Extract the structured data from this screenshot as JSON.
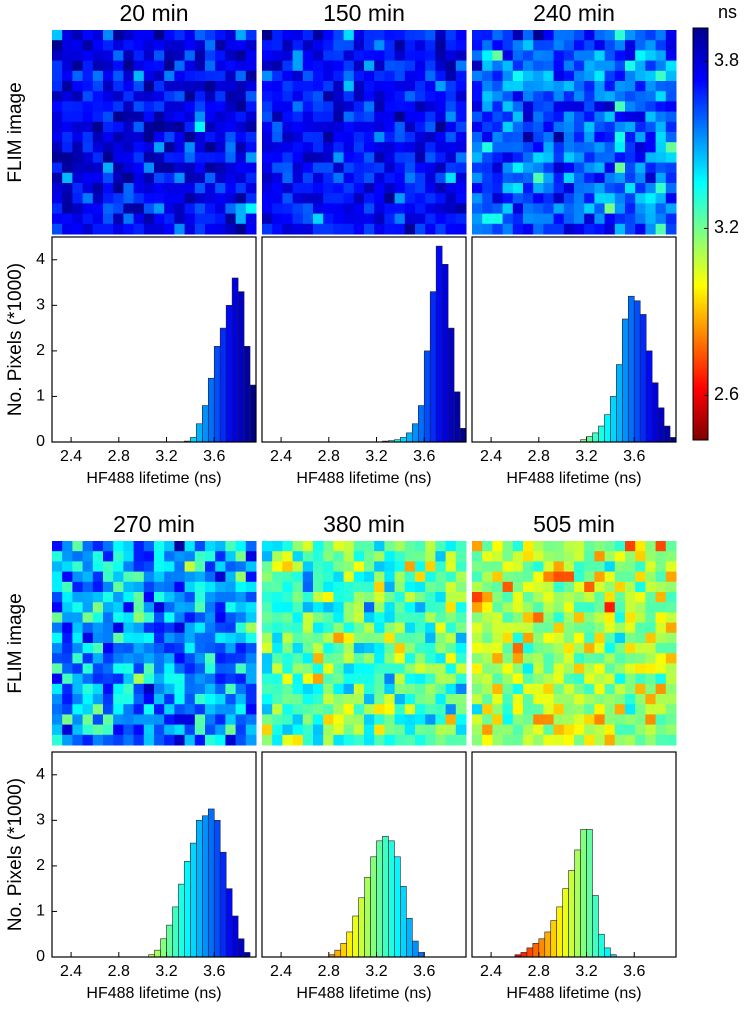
{
  "chart_data": [
    {
      "type": "histogram",
      "title": "20 min",
      "image_label": "FLIM image",
      "ylabel": "No. Pixels (*1000)",
      "xlabel": "HF488 lifetime (ns)",
      "bins": [
        3.35,
        3.4,
        3.45,
        3.5,
        3.55,
        3.6,
        3.65,
        3.7,
        3.75,
        3.8,
        3.85,
        3.9,
        3.95
      ],
      "values": [
        0.02,
        0.1,
        0.4,
        0.8,
        1.4,
        2.1,
        2.5,
        3.0,
        3.6,
        3.3,
        2.1,
        1.25
      ],
      "xlim": [
        2.24,
        3.95
      ],
      "ylim": [
        0,
        4.5
      ],
      "xticks": [
        2.4,
        2.8,
        3.2,
        3.6
      ],
      "yticks": [
        0,
        1,
        2,
        3,
        4
      ]
    },
    {
      "type": "histogram",
      "title": "150 min",
      "xlabel": "HF488 lifetime (ns)",
      "bins": [
        3.25,
        3.3,
        3.35,
        3.4,
        3.45,
        3.5,
        3.55,
        3.6,
        3.65,
        3.7,
        3.75,
        3.8,
        3.85,
        3.9,
        3.95
      ],
      "values": [
        0.02,
        0.03,
        0.05,
        0.1,
        0.2,
        0.4,
        0.8,
        2.0,
        3.3,
        4.3,
        3.9,
        2.5,
        1.1,
        0.3
      ],
      "xlim": [
        2.24,
        3.95
      ],
      "ylim": [
        0,
        4.5
      ],
      "xticks": [
        2.4,
        2.8,
        3.2,
        3.6
      ]
    },
    {
      "type": "histogram",
      "title": "240 min",
      "xlabel": "HF488 lifetime (ns)",
      "bins": [
        3.15,
        3.2,
        3.25,
        3.3,
        3.35,
        3.4,
        3.45,
        3.5,
        3.55,
        3.6,
        3.65,
        3.7,
        3.75,
        3.8,
        3.85,
        3.9,
        3.95
      ],
      "values": [
        0.05,
        0.12,
        0.2,
        0.35,
        0.6,
        1.0,
        1.7,
        2.7,
        3.2,
        3.1,
        2.8,
        2.0,
        1.3,
        0.75,
        0.35,
        0.1
      ],
      "xlim": [
        2.24,
        3.95
      ],
      "ylim": [
        0,
        4.5
      ],
      "xticks": [
        2.4,
        2.8,
        3.2,
        3.6
      ]
    },
    {
      "type": "histogram",
      "title": "270 min",
      "image_label": "FLIM image",
      "ylabel": "No. Pixels (*1000)",
      "xlabel": "HF488 lifetime (ns)",
      "bins": [
        3.05,
        3.1,
        3.15,
        3.2,
        3.25,
        3.3,
        3.35,
        3.4,
        3.45,
        3.5,
        3.55,
        3.6,
        3.65,
        3.7,
        3.75,
        3.8,
        3.85,
        3.9
      ],
      "values": [
        0.05,
        0.15,
        0.4,
        0.7,
        1.1,
        1.6,
        2.1,
        2.5,
        3.0,
        3.1,
        3.25,
        3.0,
        2.3,
        1.5,
        0.9,
        0.4,
        0.1
      ],
      "xlim": [
        2.24,
        3.95
      ],
      "ylim": [
        0,
        4.5
      ],
      "xticks": [
        2.4,
        2.8,
        3.2,
        3.6
      ],
      "yticks": [
        0,
        1,
        2,
        3,
        4
      ]
    },
    {
      "type": "histogram",
      "title": "380 min",
      "xlabel": "HF488 lifetime (ns)",
      "bins": [
        2.8,
        2.85,
        2.9,
        2.95,
        3.0,
        3.05,
        3.1,
        3.15,
        3.2,
        3.25,
        3.3,
        3.35,
        3.4,
        3.45,
        3.5,
        3.55,
        3.6
      ],
      "values": [
        0.05,
        0.15,
        0.3,
        0.55,
        0.9,
        1.3,
        1.75,
        2.2,
        2.55,
        2.65,
        2.55,
        2.2,
        1.55,
        0.85,
        0.35,
        0.1
      ],
      "xlim": [
        2.24,
        3.95
      ],
      "ylim": [
        0,
        4.5
      ],
      "xticks": [
        2.4,
        2.8,
        3.2,
        3.6
      ]
    },
    {
      "type": "histogram",
      "title": "505 min",
      "xlabel": "HF488 lifetime (ns)",
      "bins": [
        2.6,
        2.65,
        2.7,
        2.75,
        2.8,
        2.85,
        2.9,
        2.95,
        3.0,
        3.05,
        3.1,
        3.15,
        3.2,
        3.25,
        3.3,
        3.35,
        3.4,
        3.45
      ],
      "values": [
        0.05,
        0.1,
        0.2,
        0.3,
        0.4,
        0.55,
        0.8,
        1.1,
        1.5,
        1.9,
        2.35,
        2.8,
        2.8,
        1.35,
        0.5,
        0.2,
        0.05
      ],
      "xlim": [
        2.24,
        3.95
      ],
      "ylim": [
        0,
        4.5
      ],
      "xticks": [
        2.4,
        2.8,
        3.2,
        3.6
      ]
    },
    {
      "type": "colorbar",
      "title": "ns",
      "ylim": [
        2.44,
        3.92
      ],
      "yticks": [
        2.6,
        3.2,
        3.8
      ],
      "colors": [
        "#7f0000",
        "#ff0000",
        "#ff8000",
        "#ffff00",
        "#80ff80",
        "#00ffff",
        "#0080ff",
        "#0000ff",
        "#00008f"
      ]
    }
  ]
}
